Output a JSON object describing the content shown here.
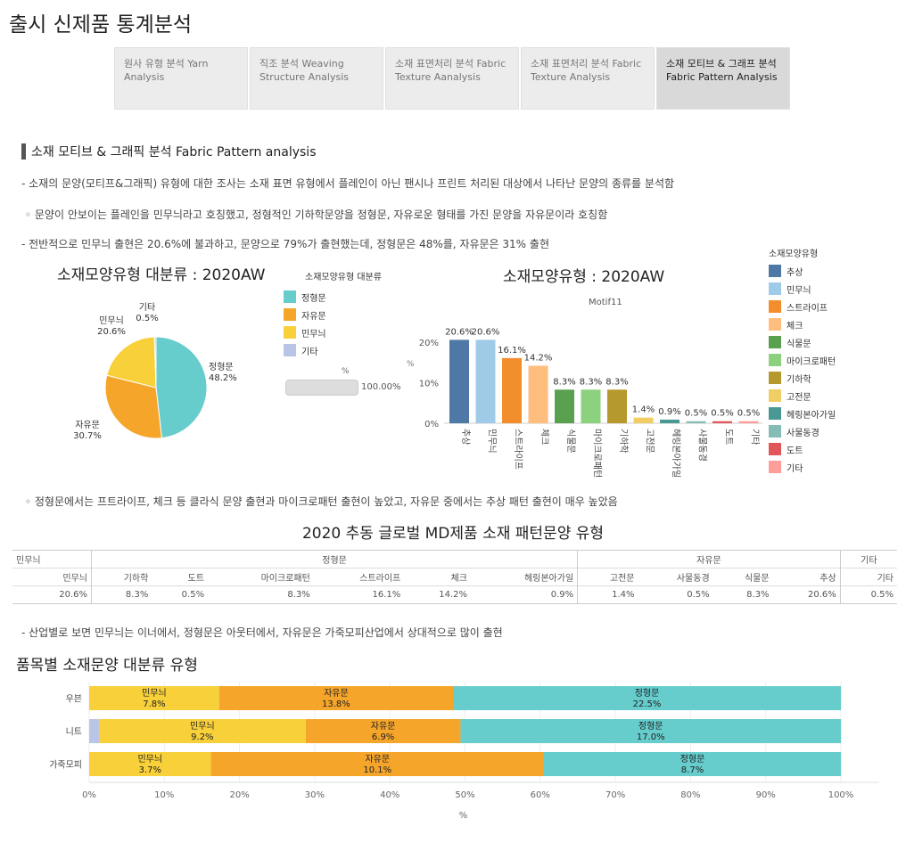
{
  "page_title": "출시 신제품 통계분석",
  "tabs": [
    {
      "label": "원사 유형 분석  Yarn Analysis",
      "active": false
    },
    {
      "label": "직조 분석 Weaving Structure Analysis",
      "active": false
    },
    {
      "label": "소재 표면처리 분석 Fabric Texture Aanalysis",
      "active": false
    },
    {
      "label": "소재 표면처리 분석 Fabric Texture Analysis",
      "active": false
    },
    {
      "label": "소재 모티브 & 그래프 분석 Fabric Pattern Analysis",
      "active": true
    }
  ],
  "section_heading": "소재 모티브 & 그래픽 분석 Fabric Pattern analysis",
  "paragraphs": {
    "p1": "- 소재의 문양(모티프&그래픽) 유형에 대한 조사는 소재 표면 유형에서 플레인이 아닌 팬시나 프린트 처리된 대상에서 나타난 문양의 종류를 분석함",
    "p2": "◦ 문양이 안보이는 플레인을 민무늬라고 호칭했고, 정형적인 기하학문양을 정형문, 자유로운 형태를 가진 문양을 자유문이라 호칭함",
    "p3": "- 전반적으로 민무늬 출현은 20.6%에 불과하고, 문양으로 79%가 출현했는데, 정형문은 48%를, 자유문은 31% 출현",
    "p4": "◦ 정형문에서는 프트라이프, 체크 등 클라식 문양 출현과 마이크로패턴 출현이 높았고, 자유문 중에서는 추상 패턴 출현이 매우 높았음",
    "p5": "- 산업별로 보면 민무늬는 이너에서, 정형문은 아웃터에서, 자유문은 가죽모피산업에서 상대적으로 많이 출현"
  },
  "pie": {
    "title": "소재모양유형 대분류 : 2020AW",
    "legend_title": "소재모양유형 대분류",
    "slices": [
      {
        "name": "정형문",
        "value": 48.2,
        "label": "48.2%",
        "color": "#66cccc"
      },
      {
        "name": "자유문",
        "value": 30.7,
        "label": "30.7%",
        "color": "#f5a52a"
      },
      {
        "name": "민무늬",
        "value": 20.6,
        "label": "20.6%",
        "color": "#f8d03a"
      },
      {
        "name": "기타",
        "value": 0.5,
        "label": "0.5%",
        "color": "#b9c5e6"
      }
    ]
  },
  "mini_bar": {
    "axis_label": "%",
    "value_label": "100.00%"
  },
  "bar": {
    "title": "소재모양유형 : 2020AW",
    "subtitle": "Motif11",
    "yaxis_mark": "%",
    "legend_title": "소재모양유형",
    "yticks": [
      "20%",
      "10%",
      "0%"
    ]
  },
  "chart_data": [
    {
      "type": "pie",
      "title": "소재모양유형 대분류 : 2020AW",
      "categories": [
        "정형문",
        "자유문",
        "민무늬",
        "기타"
      ],
      "values": [
        48.2,
        30.7,
        20.6,
        0.5
      ]
    },
    {
      "type": "bar",
      "title": "소재모양유형 : 2020AW",
      "xlabel": "Motif11",
      "ylim": [
        0,
        22
      ],
      "categories": [
        "추상",
        "민무늬",
        "스트라이프",
        "체크",
        "식물문",
        "마이크로패턴",
        "기하학",
        "고전문",
        "헤링본아가일",
        "사물동경",
        "도트",
        "기타"
      ],
      "values": [
        20.6,
        20.6,
        16.1,
        14.2,
        8.3,
        8.3,
        8.3,
        1.4,
        0.9,
        0.5,
        0.5,
        0.5
      ],
      "labels": [
        "20.6%",
        "20.6%",
        "16.1%",
        "14.2%",
        "8.3%",
        "8.3%",
        "8.3%",
        "1.4%",
        "0.9%",
        "0.5%",
        "0.5%",
        "0.5%"
      ],
      "colors": [
        "#4e79a7",
        "#a0cbe8",
        "#f28e2b",
        "#ffbe7d",
        "#59a14f",
        "#8cd17d",
        "#b6992d",
        "#f1ce63",
        "#499894",
        "#86bcb6",
        "#e15759",
        "#ff9d9a"
      ]
    },
    {
      "type": "bar",
      "orientation": "horizontal-stacked",
      "title": "품목별 소재문양 대분류 유형",
      "xlabel": "%",
      "xlim": [
        0,
        100
      ],
      "xticks": [
        "0%",
        "10%",
        "20%",
        "30%",
        "40%",
        "50%",
        "60%",
        "70%",
        "80%",
        "90%",
        "100%"
      ],
      "categories": [
        "우븐",
        "니트",
        "가죽모피"
      ],
      "series": [
        {
          "name": "기타",
          "values": [
            0,
            1.3,
            0
          ],
          "color": "#b9c5e6"
        },
        {
          "name": "민무늬",
          "values": [
            17.3,
            27.5,
            16.2
          ],
          "labels": [
            "7.8%",
            "9.2%",
            "3.7%"
          ],
          "color": "#f8d03a"
        },
        {
          "name": "자유문",
          "values": [
            31.1,
            20.6,
            44.3
          ],
          "labels": [
            "13.8%",
            "6.9%",
            "10.1%"
          ],
          "color": "#f5a52a"
        },
        {
          "name": "정형문",
          "values": [
            51.6,
            50.6,
            39.5
          ],
          "labels": [
            "22.5%",
            "17.0%",
            "8.7%"
          ],
          "color": "#66cccc"
        }
      ]
    }
  ],
  "table": {
    "title": "2020 추동 글로벌 MD제품 소재 패턴문양 유형",
    "groups": [
      "민무늬",
      "정형문",
      "자유문",
      "기타"
    ],
    "columns": [
      "민무늬",
      "기하학",
      "도트",
      "마이크로패턴",
      "스트라이프",
      "체크",
      "헤링본아가일",
      "고전문",
      "사물동경",
      "식물문",
      "추상",
      "기타"
    ],
    "values": [
      "20.6%",
      "8.3%",
      "0.5%",
      "8.3%",
      "16.1%",
      "14.2%",
      "0.9%",
      "1.4%",
      "0.5%",
      "8.3%",
      "20.6%",
      "0.5%"
    ]
  },
  "stacked": {
    "title": "품목별 소재문양 대분류 유형"
  }
}
